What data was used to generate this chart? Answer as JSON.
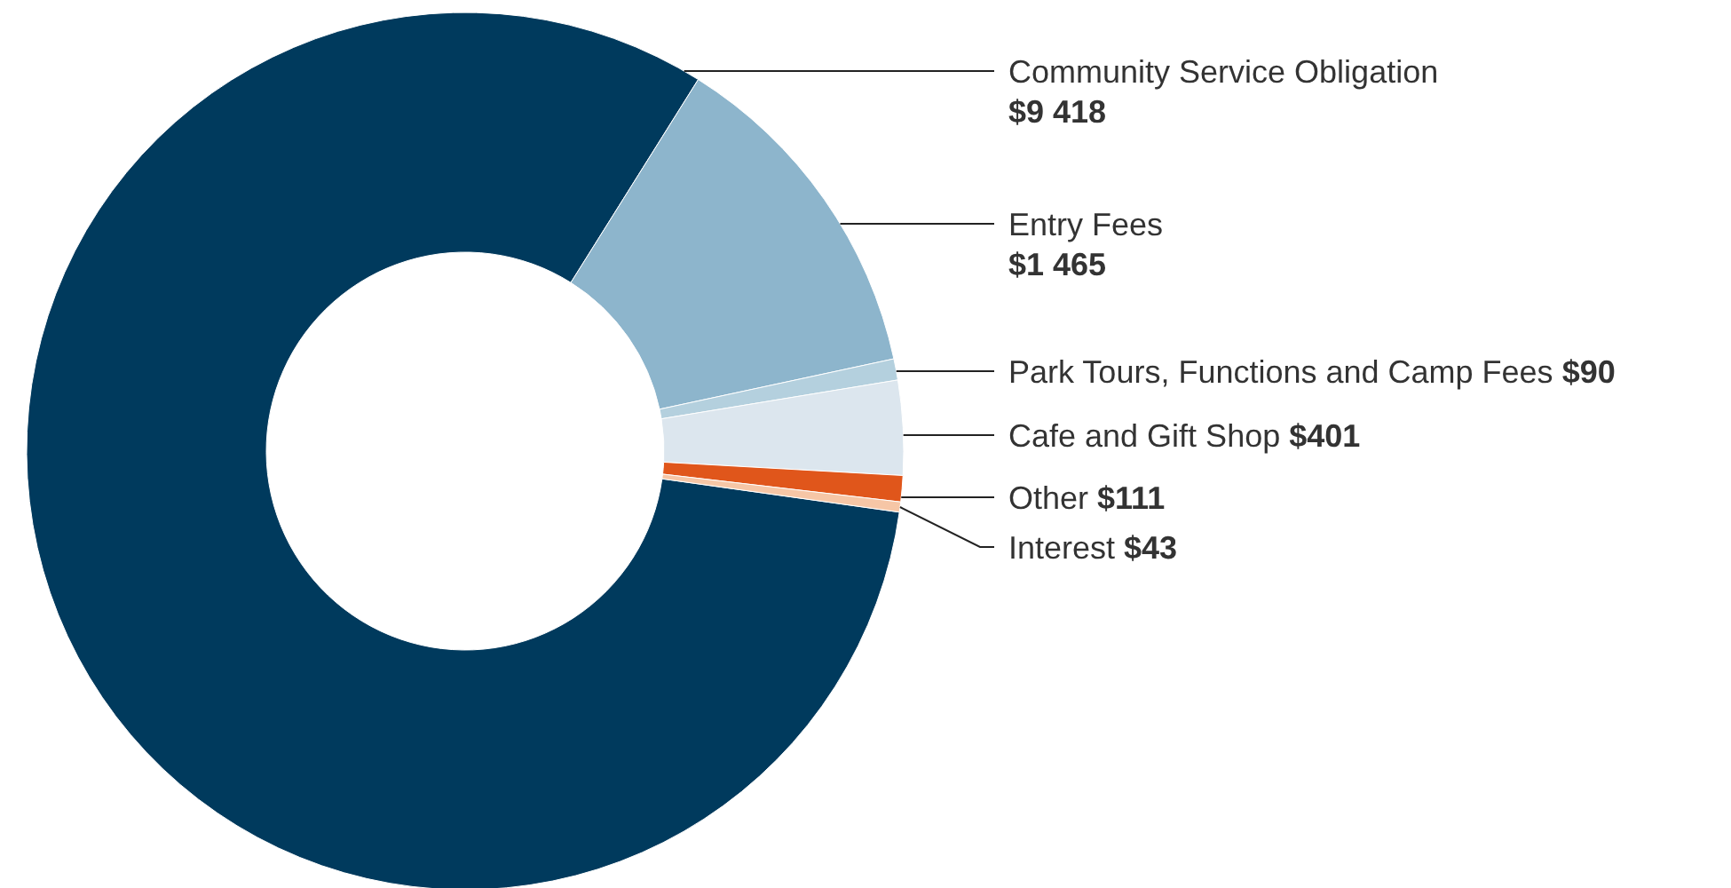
{
  "chart_data": {
    "type": "donut",
    "categories": [
      "Community Service Obligation",
      "Entry Fees",
      "Park Tours, Functions and Camp Fees",
      "Cafe and Gift Shop",
      "Other",
      "Interest"
    ],
    "values": [
      9418,
      1465,
      90,
      401,
      111,
      43
    ],
    "value_labels": [
      "$9 418",
      "$1 465",
      "$90",
      "$401",
      "$111",
      "$43"
    ],
    "colors": [
      "#003a5d",
      "#8db5cc",
      "#b4d0de",
      "#dce6ee",
      "#e0561b",
      "#f6c6a6"
    ]
  }
}
